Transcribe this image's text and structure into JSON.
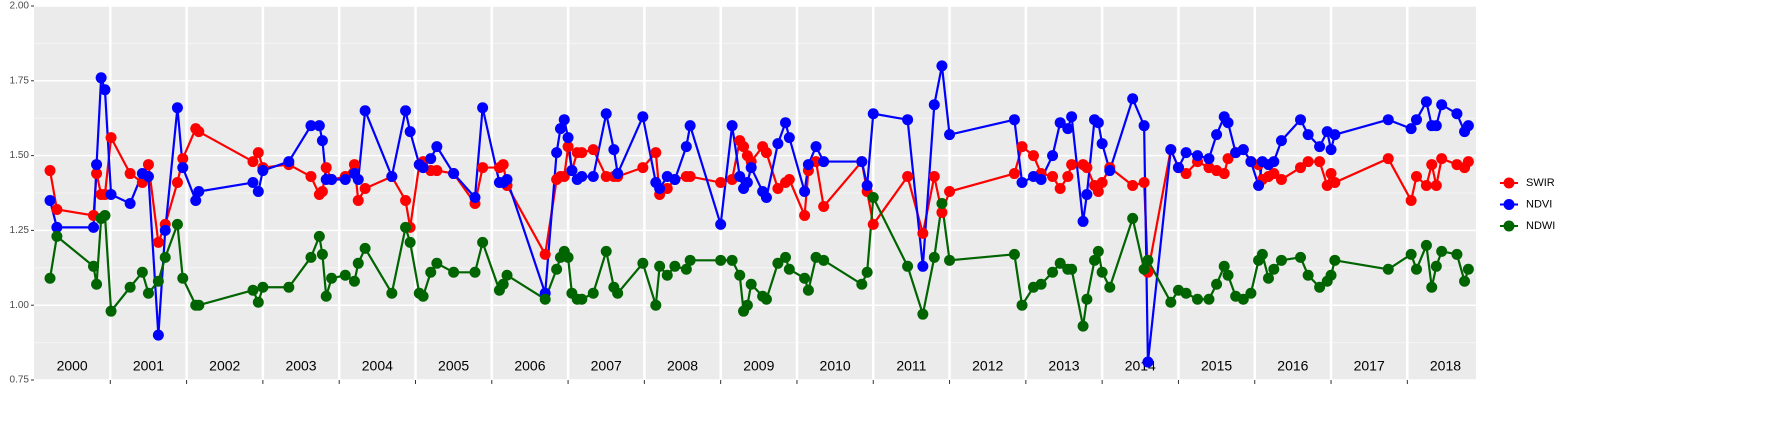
{
  "chart_data": {
    "type": "line",
    "x": [
      2000.21,
      2000.3,
      2000.78,
      2000.82,
      2000.88,
      2000.93,
      2001.01,
      2001.26,
      2001.42,
      2001.5,
      2001.63,
      2001.72,
      2001.88,
      2001.95,
      2002.12,
      2002.16,
      2002.87,
      2002.94,
      2003.0,
      2003.34,
      2003.63,
      2003.74,
      2003.78,
      2003.83,
      2003.9,
      2004.08,
      2004.2,
      2004.25,
      2004.34,
      2004.69,
      2004.87,
      2004.93,
      2005.05,
      2005.1,
      2005.2,
      2005.28,
      2005.5,
      2005.78,
      2005.88,
      2006.1,
      2006.15,
      2006.2,
      2006.7,
      2006.85,
      2006.9,
      2006.95,
      2007.0,
      2007.05,
      2007.12,
      2007.18,
      2007.33,
      2007.5,
      2007.6,
      2007.65,
      2007.98,
      2008.15,
      2008.2,
      2008.3,
      2008.4,
      2008.55,
      2008.6,
      2009.0,
      2009.15,
      2009.25,
      2009.3,
      2009.35,
      2009.4,
      2009.55,
      2009.6,
      2009.75,
      2009.85,
      2009.9,
      2010.1,
      2010.15,
      2010.25,
      2010.35,
      2010.85,
      2010.92,
      2011.0,
      2011.45,
      2011.65,
      2011.8,
      2011.9,
      2012.0,
      2012.85,
      2012.95,
      2013.1,
      2013.2,
      2013.35,
      2013.45,
      2013.55,
      2013.6,
      2013.75,
      2013.8,
      2013.9,
      2013.95,
      2014.0,
      2014.1,
      2014.4,
      2014.55,
      2014.6,
      2014.9,
      2015.0,
      2015.1,
      2015.25,
      2015.4,
      2015.5,
      2015.6,
      2015.65,
      2015.75,
      2015.85,
      2015.95,
      2016.05,
      2016.1,
      2016.18,
      2016.25,
      2016.35,
      2016.6,
      2016.7,
      2016.85,
      2016.95,
      2017.0,
      2017.05,
      2017.75,
      2018.05,
      2018.12,
      2018.25,
      2018.32,
      2018.38,
      2018.45,
      2018.65,
      2018.75,
      2018.8
    ],
    "series": [
      {
        "name": "SWIR",
        "color": "#ff0000",
        "values": [
          1.45,
          1.32,
          1.3,
          1.44,
          1.37,
          1.37,
          1.56,
          1.44,
          1.41,
          1.47,
          1.21,
          1.27,
          1.41,
          1.49,
          1.59,
          1.58,
          1.48,
          1.51,
          1.46,
          1.47,
          1.43,
          1.37,
          1.38,
          1.46,
          1.42,
          1.43,
          1.47,
          1.35,
          1.39,
          1.43,
          1.35,
          1.26,
          1.47,
          1.48,
          1.45,
          1.45,
          1.44,
          1.34,
          1.46,
          1.46,
          1.47,
          1.4,
          1.17,
          1.42,
          1.43,
          1.43,
          1.53,
          1.45,
          1.51,
          1.51,
          1.52,
          1.43,
          1.43,
          1.43,
          1.46,
          1.51,
          1.37,
          1.39,
          1.42,
          1.43,
          1.43,
          1.41,
          1.42,
          1.55,
          1.53,
          1.5,
          1.48,
          1.53,
          1.51,
          1.39,
          1.41,
          1.42,
          1.3,
          1.45,
          1.48,
          1.33,
          1.48,
          1.38,
          1.27,
          1.43,
          1.24,
          1.43,
          1.31,
          1.38,
          1.44,
          1.53,
          1.5,
          1.44,
          1.43,
          1.39,
          1.43,
          1.47,
          1.47,
          1.46,
          1.4,
          1.38,
          1.41,
          1.46,
          1.4,
          1.41,
          1.11,
          1.52,
          1.46,
          1.44,
          1.48,
          1.46,
          1.45,
          1.44,
          1.49,
          1.51,
          1.52,
          1.48,
          1.47,
          1.42,
          1.43,
          1.44,
          1.42,
          1.46,
          1.48,
          1.48,
          1.4,
          1.44,
          1.41,
          1.49,
          1.35,
          1.43,
          1.4,
          1.47,
          1.4,
          1.49,
          1.47,
          1.46,
          1.48
        ]
      },
      {
        "name": "NDVI",
        "color": "#0000ff",
        "values": [
          1.35,
          1.26,
          1.26,
          1.47,
          1.76,
          1.72,
          1.37,
          1.34,
          1.44,
          1.43,
          0.9,
          1.25,
          1.66,
          1.46,
          1.35,
          1.38,
          1.41,
          1.38,
          1.45,
          1.48,
          1.6,
          1.6,
          1.55,
          1.42,
          1.42,
          1.42,
          1.44,
          1.42,
          1.65,
          1.43,
          1.65,
          1.58,
          1.47,
          1.46,
          1.49,
          1.53,
          1.44,
          1.36,
          1.66,
          1.41,
          1.41,
          1.42,
          1.04,
          1.51,
          1.59,
          1.62,
          1.56,
          1.45,
          1.42,
          1.43,
          1.43,
          1.64,
          1.52,
          1.44,
          1.63,
          1.41,
          1.39,
          1.43,
          1.42,
          1.53,
          1.6,
          1.27,
          1.6,
          1.43,
          1.39,
          1.41,
          1.46,
          1.38,
          1.36,
          1.54,
          1.61,
          1.56,
          1.38,
          1.47,
          1.53,
          1.48,
          1.48,
          1.4,
          1.64,
          1.62,
          1.13,
          1.67,
          1.8,
          1.57,
          1.62,
          1.41,
          1.43,
          1.42,
          1.5,
          1.61,
          1.59,
          1.63,
          1.28,
          1.37,
          1.62,
          1.61,
          1.54,
          1.45,
          1.69,
          1.6,
          0.81,
          1.52,
          1.46,
          1.51,
          1.5,
          1.49,
          1.57,
          1.63,
          1.61,
          1.51,
          1.52,
          1.48,
          1.4,
          1.48,
          1.47,
          1.48,
          1.55,
          1.62,
          1.57,
          1.53,
          1.58,
          1.52,
          1.57,
          1.62,
          1.59,
          1.62,
          1.68,
          1.6,
          1.6,
          1.67,
          1.64,
          1.58,
          1.6
        ]
      },
      {
        "name": "NDWI",
        "color": "#006400",
        "values": [
          1.09,
          1.23,
          1.13,
          1.07,
          1.29,
          1.3,
          0.98,
          1.06,
          1.11,
          1.04,
          1.08,
          1.16,
          1.27,
          1.09,
          1.0,
          1.0,
          1.05,
          1.01,
          1.06,
          1.06,
          1.16,
          1.23,
          1.17,
          1.03,
          1.09,
          1.1,
          1.08,
          1.14,
          1.19,
          1.04,
          1.26,
          1.21,
          1.04,
          1.03,
          1.11,
          1.14,
          1.11,
          1.11,
          1.21,
          1.05,
          1.07,
          1.1,
          1.02,
          1.12,
          1.16,
          1.18,
          1.16,
          1.04,
          1.02,
          1.02,
          1.04,
          1.18,
          1.06,
          1.04,
          1.14,
          1.0,
          1.13,
          1.1,
          1.13,
          1.12,
          1.15,
          1.15,
          1.15,
          1.1,
          0.98,
          1.0,
          1.07,
          1.03,
          1.02,
          1.14,
          1.16,
          1.12,
          1.09,
          1.05,
          1.16,
          1.15,
          1.07,
          1.11,
          1.36,
          1.13,
          0.97,
          1.16,
          1.34,
          1.15,
          1.17,
          1.0,
          1.06,
          1.07,
          1.11,
          1.14,
          1.12,
          1.12,
          0.93,
          1.02,
          1.15,
          1.18,
          1.11,
          1.06,
          1.29,
          1.12,
          1.15,
          1.01,
          1.05,
          1.04,
          1.02,
          1.02,
          1.07,
          1.13,
          1.1,
          1.03,
          1.02,
          1.04,
          1.15,
          1.17,
          1.09,
          1.12,
          1.15,
          1.16,
          1.1,
          1.06,
          1.08,
          1.1,
          1.15,
          1.12,
          1.17,
          1.12,
          1.2,
          1.06,
          1.13,
          1.18,
          1.17,
          1.08,
          1.12
        ]
      }
    ],
    "xlim": [
      2000,
      2018.9
    ],
    "xticks": [
      2001,
      2002,
      2003,
      2004,
      2005,
      2006,
      2007,
      2008,
      2009,
      2010,
      2011,
      2012,
      2013,
      2014,
      2015,
      2016,
      2017,
      2018
    ],
    "year_labels": [
      {
        "value": 2000.5,
        "label": "2000"
      },
      {
        "value": 2001.5,
        "label": "2001"
      },
      {
        "value": 2002.5,
        "label": "2002"
      },
      {
        "value": 2003.5,
        "label": "2003"
      },
      {
        "value": 2004.5,
        "label": "2004"
      },
      {
        "value": 2005.5,
        "label": "2005"
      },
      {
        "value": 2006.5,
        "label": "2006"
      },
      {
        "value": 2007.5,
        "label": "2007"
      },
      {
        "value": 2008.5,
        "label": "2008"
      },
      {
        "value": 2009.5,
        "label": "2009"
      },
      {
        "value": 2010.5,
        "label": "2010"
      },
      {
        "value": 2011.5,
        "label": "2011"
      },
      {
        "value": 2012.5,
        "label": "2012"
      },
      {
        "value": 2013.5,
        "label": "2013"
      },
      {
        "value": 2014.5,
        "label": "2014"
      },
      {
        "value": 2015.5,
        "label": "2015"
      },
      {
        "value": 2016.5,
        "label": "2016"
      },
      {
        "value": 2017.5,
        "label": "2017"
      },
      {
        "value": 2018.5,
        "label": "2018"
      }
    ],
    "ylim": [
      0.75,
      2.0
    ],
    "yticks": [
      0.75,
      {
        "value": 1.0,
        "label": "1.00"
      },
      1.25,
      {
        "value": 1.5,
        "label": "1.50"
      },
      1.75,
      {
        "value": 2.0,
        "label": "2.00"
      }
    ],
    "grid": true,
    "legend": "right"
  }
}
